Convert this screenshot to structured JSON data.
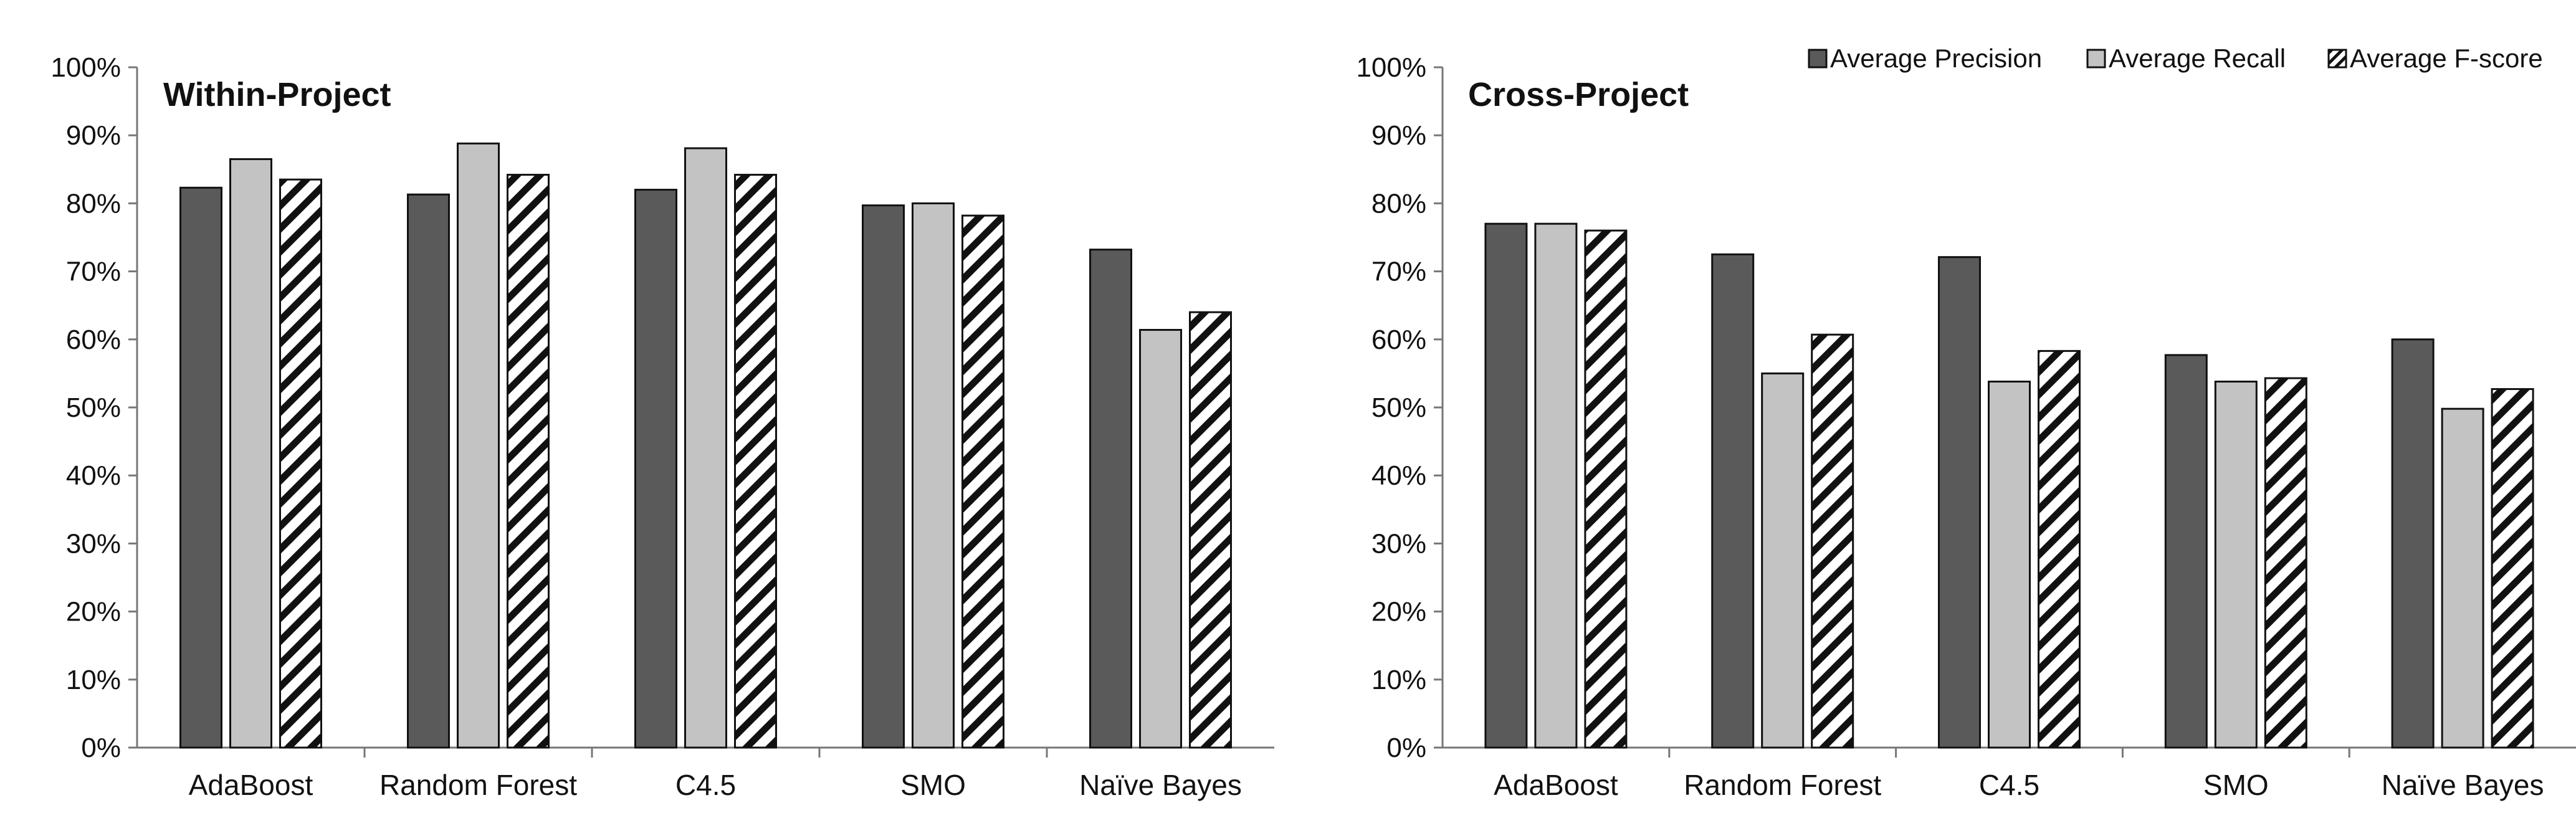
{
  "colors": {
    "precision": "#5a5a5a",
    "recall": "#c3c3c3",
    "fscore_bg": "#ffffff",
    "fscore_hatch": "#111111",
    "axis": "#777777",
    "bar_stroke": "#111111"
  },
  "legend": {
    "placement": "top-right",
    "items": [
      {
        "key": "precision",
        "label": "Average Precision"
      },
      {
        "key": "recall",
        "label": "Average Recall"
      },
      {
        "key": "fscore",
        "label": "Average F-score"
      }
    ]
  },
  "chart_data": [
    {
      "type": "bar",
      "title": "Within-Project",
      "xlabel": "",
      "ylabel": "",
      "ylim": [
        0,
        100
      ],
      "ytick_step": 10,
      "ytick_labels": [
        "0%",
        "10%",
        "20%",
        "30%",
        "40%",
        "50%",
        "60%",
        "70%",
        "80%",
        "90%",
        "100%"
      ],
      "grid": false,
      "categories": [
        "AdaBoost",
        "Random Forest",
        "C4.5",
        "SMO",
        "Naïve Bayes"
      ],
      "series": [
        {
          "name": "Average Precision",
          "key": "precision",
          "values": [
            82.3,
            81.3,
            82.0,
            79.7,
            73.2
          ]
        },
        {
          "name": "Average Recall",
          "key": "recall",
          "values": [
            86.5,
            88.8,
            88.1,
            80.0,
            61.4
          ]
        },
        {
          "name": "Average F-score",
          "key": "fscore",
          "values": [
            83.5,
            84.2,
            84.2,
            78.2,
            64.0
          ]
        }
      ]
    },
    {
      "type": "bar",
      "title": "Cross-Project",
      "xlabel": "",
      "ylabel": "",
      "ylim": [
        0,
        100
      ],
      "ytick_step": 10,
      "ytick_labels": [
        "0%",
        "10%",
        "20%",
        "30%",
        "40%",
        "50%",
        "60%",
        "70%",
        "80%",
        "90%",
        "100%"
      ],
      "grid": false,
      "categories": [
        "AdaBoost",
        "Random Forest",
        "C4.5",
        "SMO",
        "Naïve Bayes"
      ],
      "series": [
        {
          "name": "Average Precision",
          "key": "precision",
          "values": [
            77.0,
            72.5,
            72.1,
            57.7,
            60.0
          ]
        },
        {
          "name": "Average Recall",
          "key": "recall",
          "values": [
            77.0,
            55.0,
            53.8,
            53.8,
            49.8
          ]
        },
        {
          "name": "Average F-score",
          "key": "fscore",
          "values": [
            76.0,
            60.7,
            58.3,
            54.3,
            52.7
          ]
        }
      ]
    }
  ]
}
